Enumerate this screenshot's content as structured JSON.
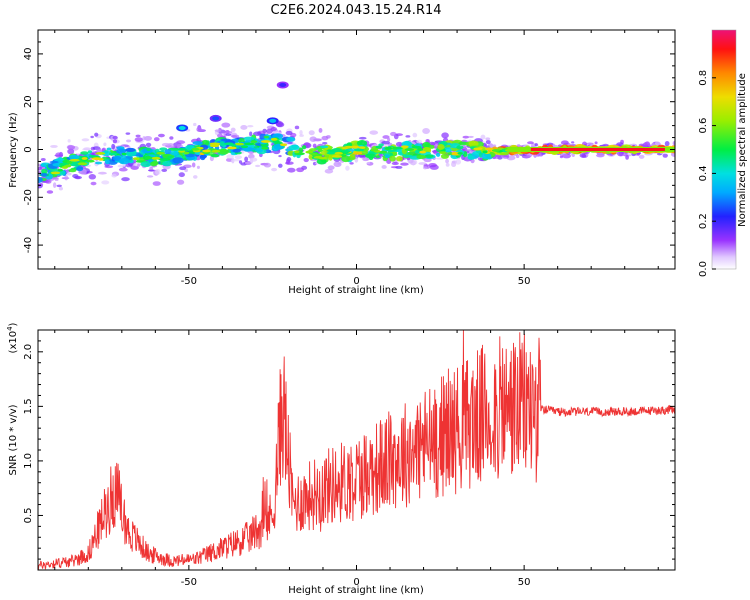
{
  "figure_title": "C2E6.2024.043.15.24.R14",
  "colors": {
    "snr_line": "#ee3333",
    "frame": "#000000"
  },
  "colorbar": {
    "label": "Normalized spectral amplitude",
    "ticks": [
      "0.0",
      "0.2",
      "0.4",
      "0.6",
      "0.8"
    ],
    "tick_values": [
      0.0,
      0.2,
      0.4,
      0.6,
      0.8
    ],
    "range": [
      0,
      1
    ]
  },
  "chart_data": [
    {
      "type": "heatmap",
      "xlabel": "Height of straight line (km)",
      "ylabel": "Frequency (Hz)",
      "xlim": [
        -95,
        95
      ],
      "ylim": [
        -50,
        50
      ],
      "xticks": [
        -50,
        0,
        50
      ],
      "yticks": [
        -40,
        -20,
        0,
        20,
        40
      ],
      "grid": false,
      "ridge": [
        {
          "x": -95,
          "y": -10
        },
        {
          "x": -85,
          "y": -6
        },
        {
          "x": -75,
          "y": -2
        },
        {
          "x": -65,
          "y": -3
        },
        {
          "x": -55,
          "y": -3
        },
        {
          "x": -50,
          "y": -1
        },
        {
          "x": -40,
          "y": 1
        },
        {
          "x": -30,
          "y": 2
        },
        {
          "x": -22,
          "y": 3
        },
        {
          "x": -15,
          "y": -2
        },
        {
          "x": -5,
          "y": -2
        },
        {
          "x": 0,
          "y": 0
        },
        {
          "x": 10,
          "y": -1
        },
        {
          "x": 20,
          "y": 0
        },
        {
          "x": 30,
          "y": 0
        },
        {
          "x": 40,
          "y": -1
        },
        {
          "x": 50,
          "y": 0
        },
        {
          "x": 60,
          "y": 0
        },
        {
          "x": 70,
          "y": 0
        },
        {
          "x": 80,
          "y": 0
        },
        {
          "x": 95,
          "y": 0
        }
      ],
      "features": [
        {
          "x": -52,
          "y": 9,
          "amp": 0.4
        },
        {
          "x": -42,
          "y": 13,
          "amp": 0.25
        },
        {
          "x": -22,
          "y": 27,
          "amp": 0.2
        },
        {
          "x": -25,
          "y": 12,
          "amp": 0.35
        }
      ]
    },
    {
      "type": "line",
      "xlabel": "Height of straight line (km)",
      "ylabel": "SNR (10 * v/v)",
      "y_scale_label": "(x10",
      "y_scale_exp": "4",
      "xlim": [
        -95,
        95
      ],
      "ylim": [
        0,
        2.2
      ],
      "xticks": [
        -50,
        0,
        50
      ],
      "yticks": [
        0.5,
        1.0,
        1.5,
        2.0
      ],
      "ytick_labels": [
        "0.5",
        "1.0",
        "1.5",
        "2.0"
      ],
      "grid": false,
      "series": [
        {
          "color": "#ee3333",
          "envelope": [
            {
              "x": -95,
              "y": 0.04
            },
            {
              "x": -85,
              "y": 0.08
            },
            {
              "x": -80,
              "y": 0.15
            },
            {
              "x": -76,
              "y": 0.45
            },
            {
              "x": -72,
              "y": 0.75
            },
            {
              "x": -68,
              "y": 0.35
            },
            {
              "x": -62,
              "y": 0.15
            },
            {
              "x": -55,
              "y": 0.08
            },
            {
              "x": -48,
              "y": 0.1
            },
            {
              "x": -40,
              "y": 0.2
            },
            {
              "x": -32,
              "y": 0.3
            },
            {
              "x": -25,
              "y": 0.5
            },
            {
              "x": -22,
              "y": 1.55
            },
            {
              "x": -19,
              "y": 0.6
            },
            {
              "x": -10,
              "y": 0.75
            },
            {
              "x": 0,
              "y": 0.85
            },
            {
              "x": 10,
              "y": 1.0
            },
            {
              "x": 20,
              "y": 1.15
            },
            {
              "x": 30,
              "y": 1.3
            },
            {
              "x": 40,
              "y": 1.45
            },
            {
              "x": 50,
              "y": 1.5
            },
            {
              "x": 60,
              "y": 1.45
            },
            {
              "x": 70,
              "y": 1.45
            },
            {
              "x": 80,
              "y": 1.45
            },
            {
              "x": 95,
              "y": 1.47
            }
          ]
        }
      ]
    }
  ]
}
